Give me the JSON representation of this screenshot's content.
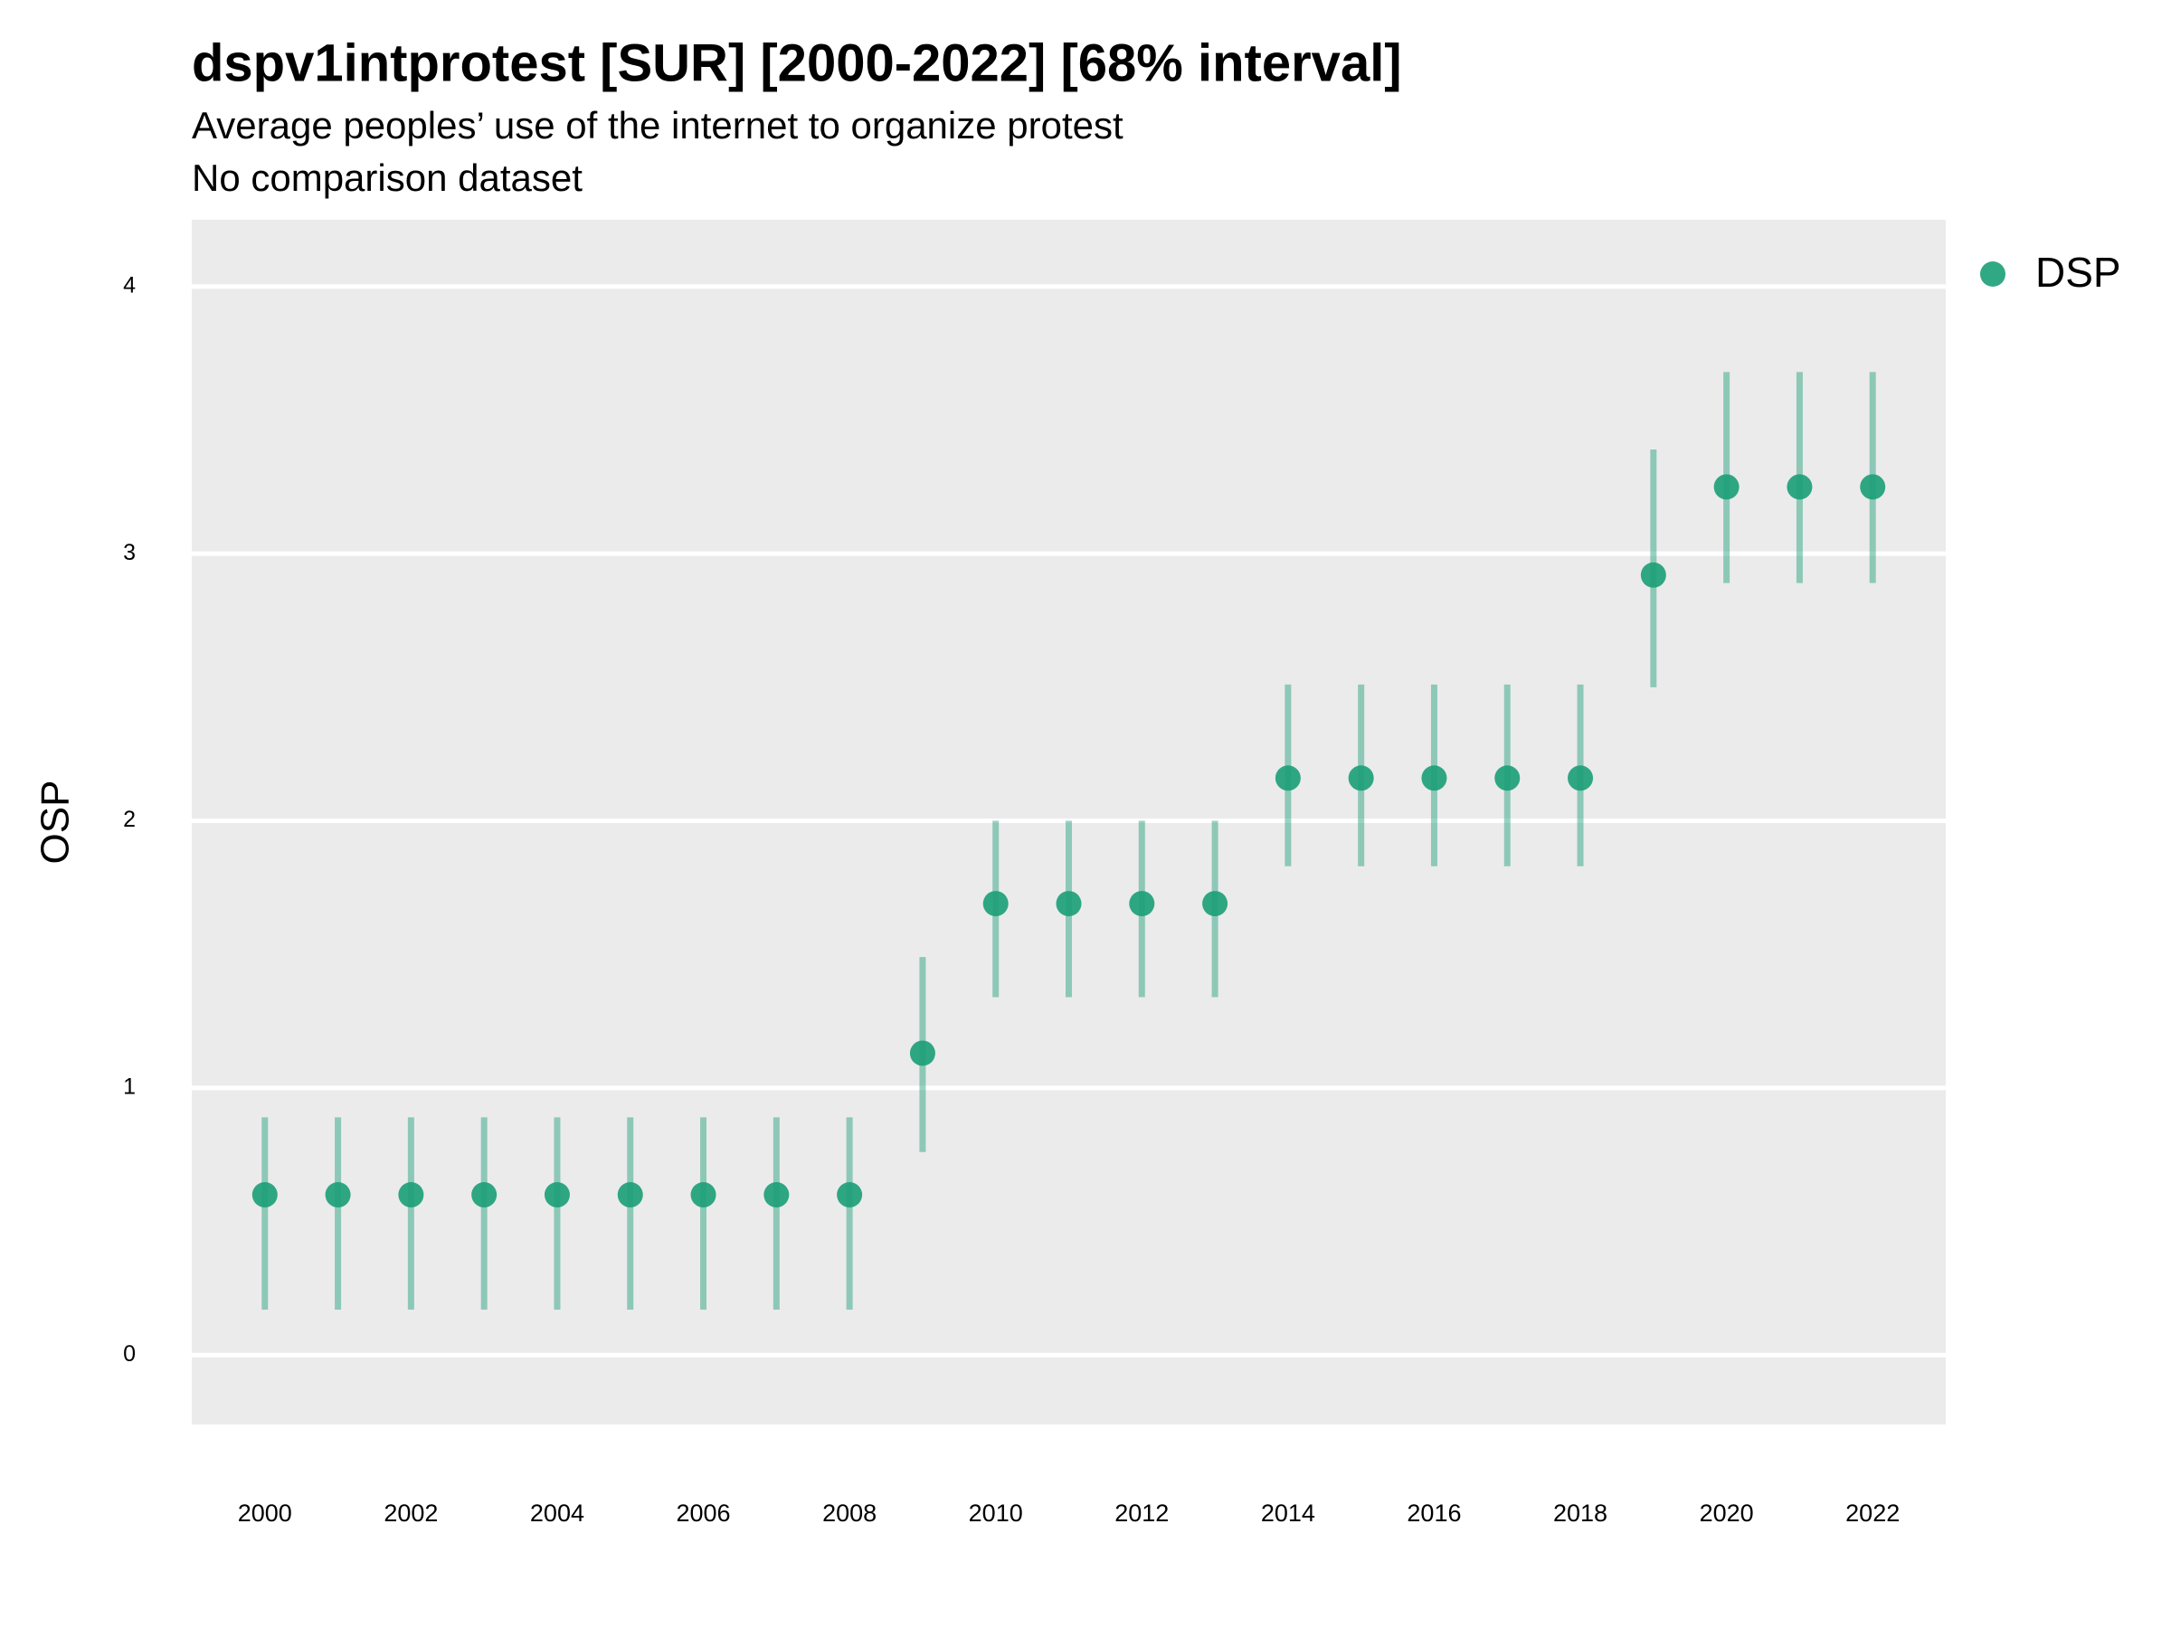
{
  "chart_data": {
    "type": "pointrange",
    "title": "dspv1intprotest [SUR] [2000-2022] [68% interval]",
    "subtitle": [
      "Average peoples’ use of the internet to organize protest",
      "No comparison dataset"
    ],
    "y_label": "OSP",
    "x": [
      2000,
      2001,
      2002,
      2003,
      2004,
      2005,
      2006,
      2007,
      2008,
      2009,
      2010,
      2011,
      2012,
      2013,
      2014,
      2015,
      2016,
      2017,
      2018,
      2019,
      2020,
      2021,
      2022
    ],
    "series": [
      {
        "name": "DSP",
        "color": "#1b9e77",
        "values": [
          0.6,
          0.6,
          0.6,
          0.6,
          0.6,
          0.6,
          0.6,
          0.6,
          0.6,
          1.13,
          1.69,
          1.69,
          1.69,
          1.69,
          2.16,
          2.16,
          2.16,
          2.16,
          2.16,
          2.92,
          3.25,
          3.25,
          3.25
        ],
        "lower": [
          0.17,
          0.17,
          0.17,
          0.17,
          0.17,
          0.17,
          0.17,
          0.17,
          0.17,
          0.76,
          1.34,
          1.34,
          1.34,
          1.34,
          1.83,
          1.83,
          1.83,
          1.83,
          1.83,
          2.5,
          2.89,
          2.89,
          2.89
        ],
        "upper": [
          0.89,
          0.89,
          0.89,
          0.89,
          0.89,
          0.89,
          0.89,
          0.89,
          0.89,
          1.49,
          2.0,
          2.0,
          2.0,
          2.0,
          2.51,
          2.51,
          2.51,
          2.51,
          2.51,
          3.39,
          3.68,
          3.68,
          3.68
        ]
      }
    ],
    "xlim": [
      1999,
      2023
    ],
    "xticks": [
      2000,
      2002,
      2004,
      2006,
      2008,
      2010,
      2012,
      2014,
      2016,
      2018,
      2020,
      2022
    ],
    "ylim": [
      -0.26,
      4.25
    ],
    "yticks": [
      0,
      1,
      2,
      3,
      4
    ],
    "grid": true,
    "legend": "right"
  }
}
